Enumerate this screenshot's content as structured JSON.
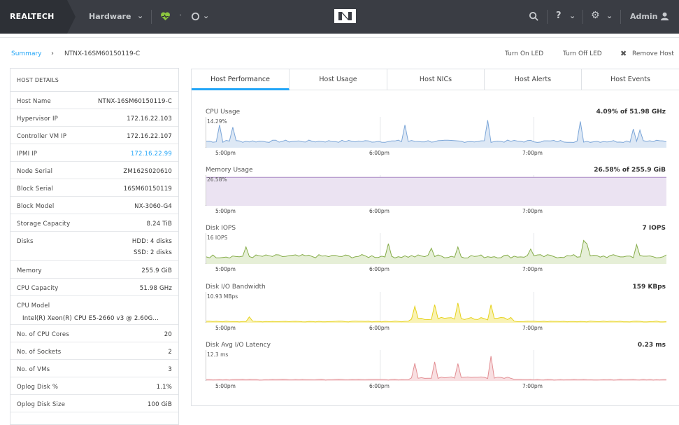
{
  "topbar": {
    "brand": "REALTECH",
    "menu": "Hardware",
    "admin": "Admin"
  },
  "breadcrumb": {
    "summary": "Summary",
    "separator": "›",
    "host": "NTNX-16SM60150119-C"
  },
  "actions": {
    "led_on": "Turn On LED",
    "led_off": "Turn Off LED",
    "remove": "Remove Host"
  },
  "details": {
    "header": "HOST DETAILS",
    "rows": [
      {
        "k": "Host Name",
        "v": "NTNX-16SM60150119-C"
      },
      {
        "k": "Hypervisor IP",
        "v": "172.16.22.103"
      },
      {
        "k": "Controller VM IP",
        "v": "172.16.22.107"
      },
      {
        "k": "IPMI IP",
        "v": "172.16.22.99"
      },
      {
        "k": "Node Serial",
        "v": "ZM162S020610"
      },
      {
        "k": "Block Serial",
        "v": "16SM60150119"
      },
      {
        "k": "Block Model",
        "v": "NX-3060-G4"
      },
      {
        "k": "Storage Capacity",
        "v": "8.24 TiB"
      },
      {
        "k": "Disks",
        "v": "HDD: 4 disks",
        "v2": "SSD: 2 disks"
      },
      {
        "k": "Memory",
        "v": "255.9 GiB"
      },
      {
        "k": "CPU Capacity",
        "v": "51.98 GHz"
      },
      {
        "k": "CPU Model",
        "full": "Intel(R) Xeon(R) CPU E5-2660 v3 @ 2.60G..."
      },
      {
        "k": "No. of CPU Cores",
        "v": "20"
      },
      {
        "k": "No. of Sockets",
        "v": "2"
      },
      {
        "k": "No. of VMs",
        "v": "3"
      },
      {
        "k": "Oplog Disk %",
        "v": "1.1%"
      },
      {
        "k": "Oplog Disk Size",
        "v": "100 GiB"
      }
    ]
  },
  "tabs": [
    "Host Performance",
    "Host Usage",
    "Host NICs",
    "Host Alerts",
    "Host Events"
  ],
  "charts": [
    {
      "title": "CPU Usage",
      "value": "4.09% of 51.98 GHz",
      "max": "14.29%",
      "color": "#7ca6d8",
      "fill": "#dde8f5"
    },
    {
      "title": "Memory Usage",
      "value": "26.58% of 255.9 GiB",
      "max": "26.58%",
      "color": "#a98ac4",
      "fill": "#ebe3f2"
    },
    {
      "title": "Disk IOPS",
      "value": "7 IOPS",
      "max": "16 IOPS",
      "color": "#86ad4a",
      "fill": "#e6efd7"
    },
    {
      "title": "Disk I/O Bandwidth",
      "value": "159 KBps",
      "max": "10.93 MBps",
      "color": "#e6d21d",
      "fill": "#f9f2b4"
    },
    {
      "title": "Disk Avg I/O Latency",
      "value": "0.23 ms",
      "max": "12.3 ms",
      "color": "#e28e93",
      "fill": "#f8dfe1"
    }
  ],
  "time_ticks": [
    "5:00pm",
    "6:00pm",
    "7:00pm"
  ]
}
